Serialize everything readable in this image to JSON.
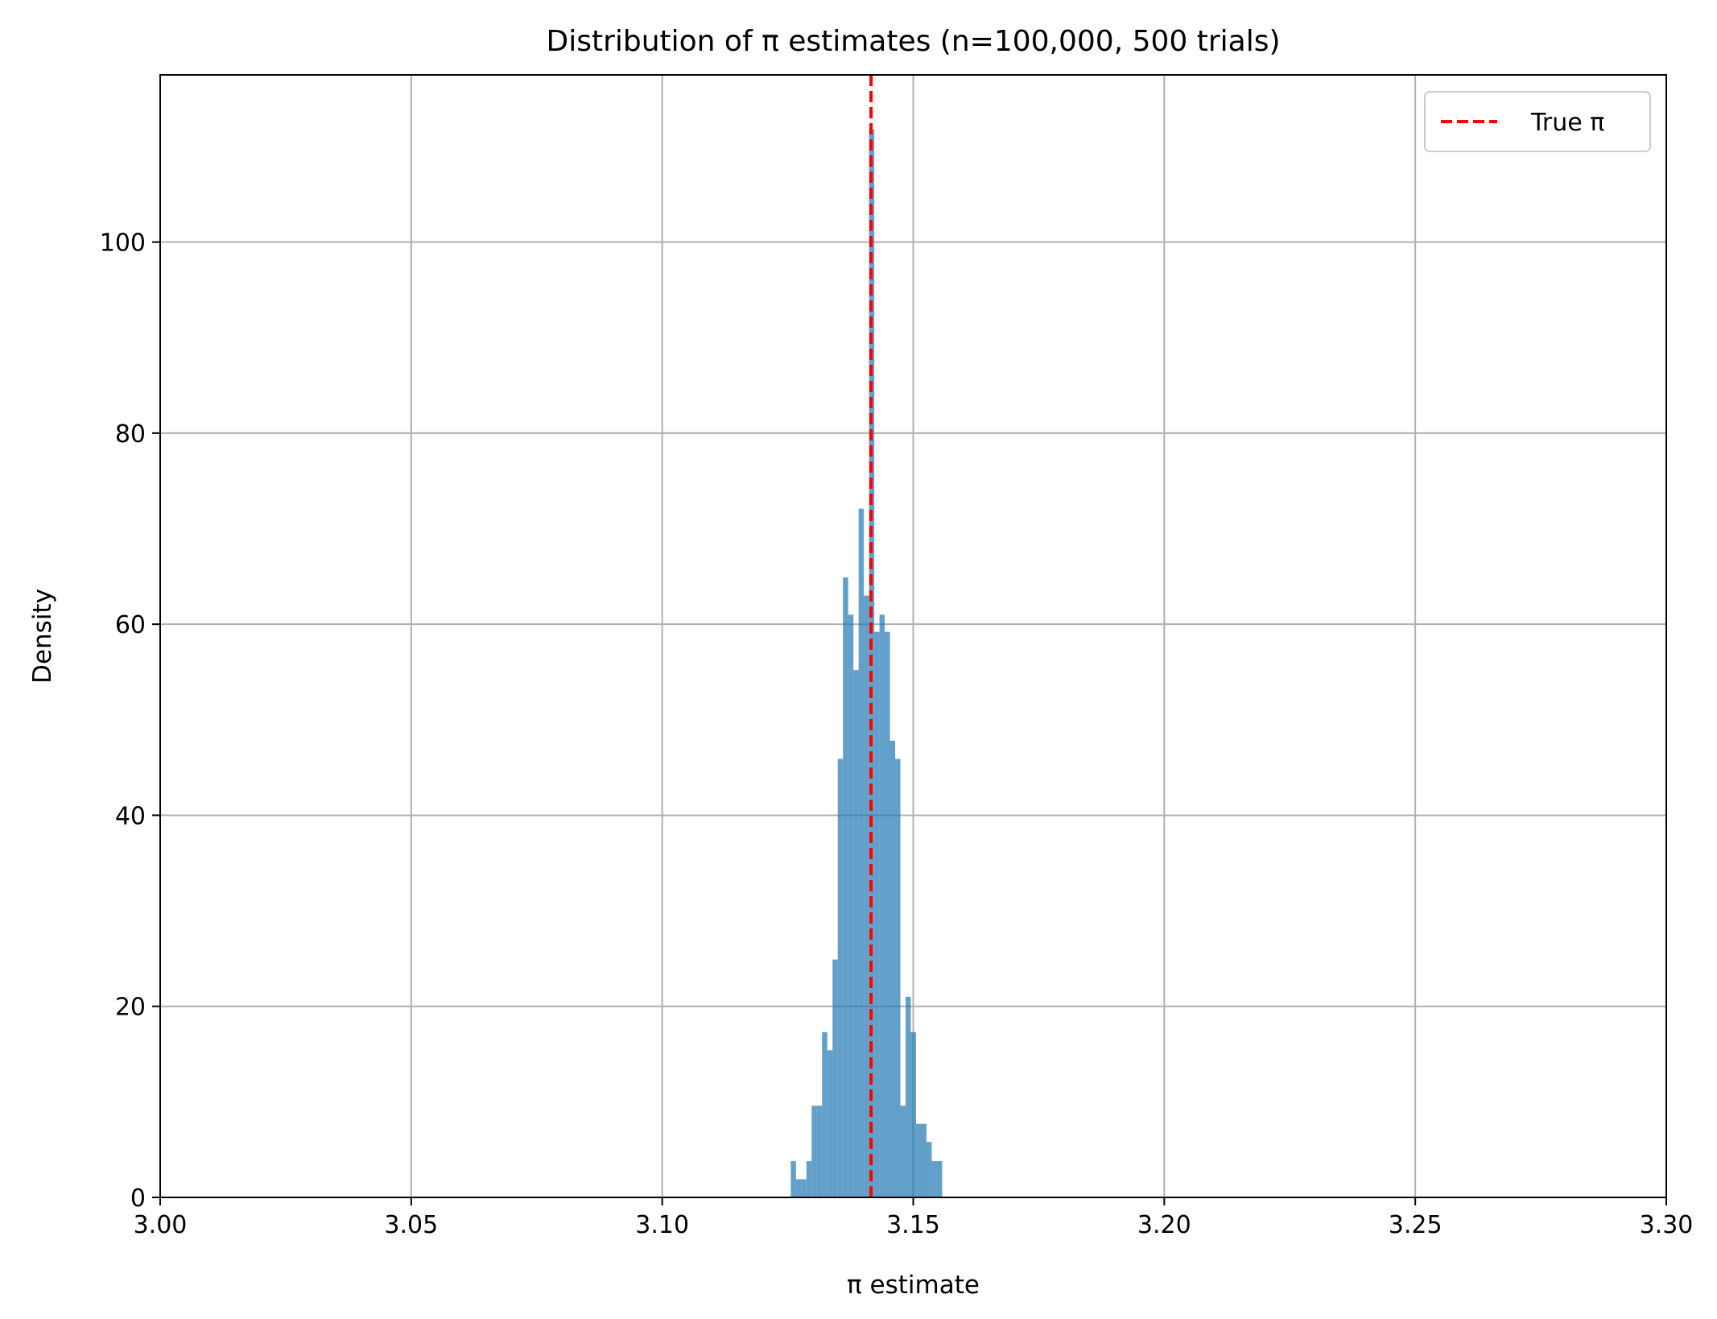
{
  "chart_data": {
    "type": "bar",
    "title": "Distribution of π estimates (n=100,000, 500 trials)",
    "xlabel": "π estimate",
    "ylabel": "Density",
    "xlim": [
      3.0,
      3.3
    ],
    "ylim": [
      0,
      117.5
    ],
    "xticks": [
      "3.00",
      "3.05",
      "3.10",
      "3.15",
      "3.20",
      "3.25",
      "3.30"
    ],
    "xtick_values": [
      3.0,
      3.05,
      3.1,
      3.15,
      3.2,
      3.25,
      3.3
    ],
    "yticks": [
      "0",
      "20",
      "40",
      "60",
      "80",
      "100"
    ],
    "ytick_values": [
      0,
      20,
      40,
      60,
      80,
      100
    ],
    "grid": true,
    "bar_color": "#1f77b4",
    "bar_opacity": 0.7,
    "bins": {
      "start": 3.1256,
      "width": 0.00104,
      "densities": [
        3.8,
        1.9,
        1.9,
        3.8,
        9.6,
        9.6,
        17.3,
        15.4,
        24.9,
        45.9,
        64.9,
        61.0,
        55.2,
        72.1,
        63.0,
        111.8,
        59.2,
        61.0,
        59.2,
        47.8,
        45.9,
        9.6,
        21.0,
        17.3,
        7.7,
        7.7,
        5.8,
        3.8,
        3.8
      ]
    },
    "reference_line": {
      "x": 3.14159,
      "color": "#ff0000",
      "style": "dashed",
      "label": "True π"
    },
    "legend": {
      "position": "top-right",
      "entries": [
        {
          "label": "True π",
          "color": "#ff0000",
          "style": "dashed"
        }
      ]
    }
  }
}
